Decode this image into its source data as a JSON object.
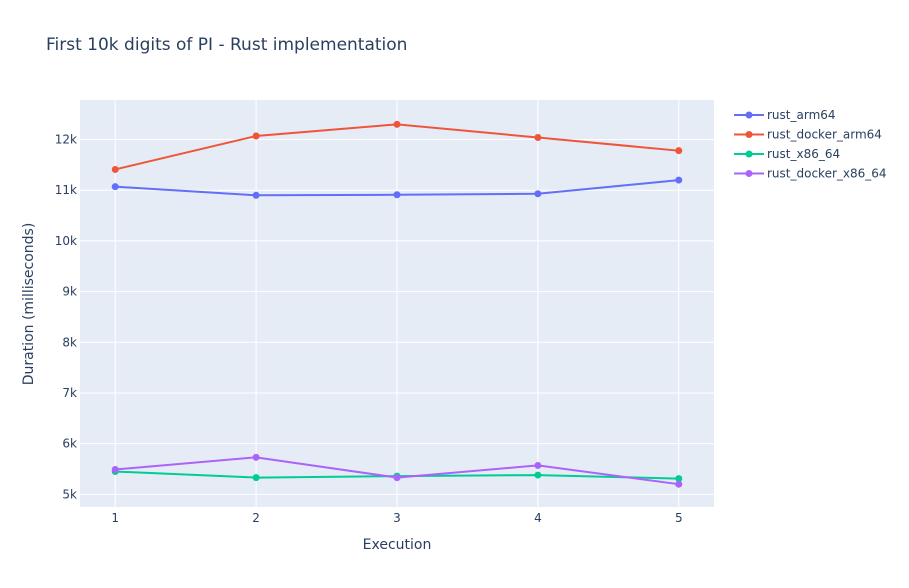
{
  "chart_data": {
    "type": "line",
    "title": "First 10k digits of PI - Rust implementation",
    "xlabel": "Execution",
    "ylabel": "Duration (milliseconds)",
    "x": [
      1,
      2,
      3,
      4,
      5
    ],
    "xticks": [
      "1",
      "2",
      "3",
      "4",
      "5"
    ],
    "xlim": [
      0.75,
      5.25
    ],
    "ylim": [
      4750,
      12780
    ],
    "yticks": [
      5000,
      6000,
      7000,
      8000,
      9000,
      10000,
      11000,
      12000
    ],
    "ytick_labels": [
      "5k",
      "6k",
      "7k",
      "8k",
      "9k",
      "10k",
      "11k",
      "12k"
    ],
    "grid": true,
    "legend_position": "top-right outside",
    "series": [
      {
        "name": "rust_arm64",
        "color": "#636efa",
        "values": [
          11070,
          10900,
          10910,
          10930,
          11200
        ]
      },
      {
        "name": "rust_docker_arm64",
        "color": "#ef553b",
        "values": [
          11410,
          12070,
          12300,
          12040,
          11780
        ]
      },
      {
        "name": "rust_x86_64",
        "color": "#00cc96",
        "values": [
          5450,
          5330,
          5360,
          5380,
          5310
        ]
      },
      {
        "name": "rust_docker_x86_64",
        "color": "#ab63fa",
        "values": [
          5490,
          5730,
          5330,
          5570,
          5200
        ]
      }
    ]
  }
}
